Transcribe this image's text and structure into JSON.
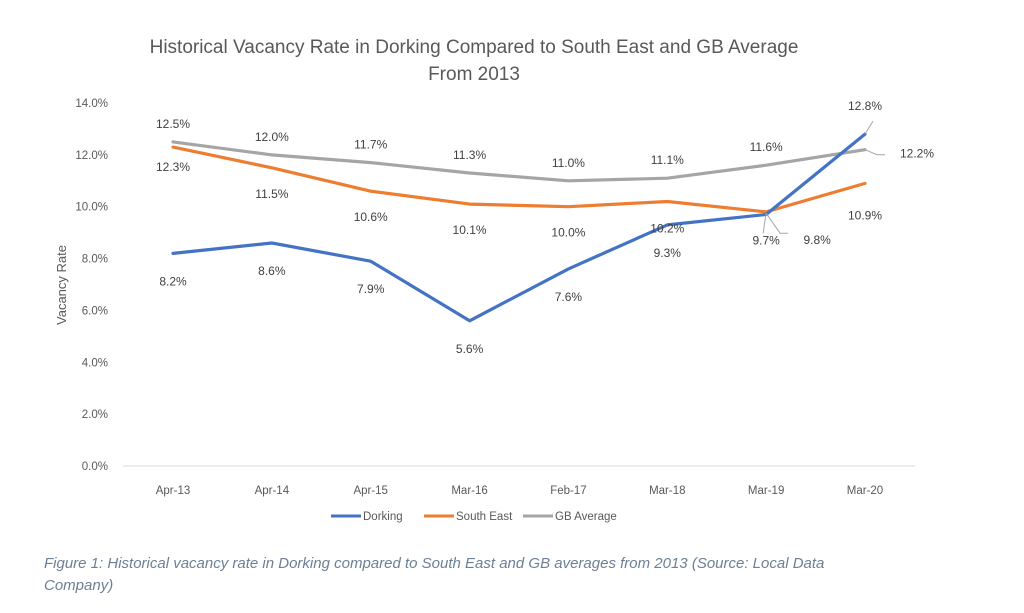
{
  "chart_data": {
    "type": "line",
    "title": [
      "Historical Vacancy Rate in Dorking Compared to South East and GB Average",
      "From 2013"
    ],
    "xlabel": "",
    "ylabel": "Vacancy Rate",
    "categories": [
      "Apr-13",
      "Apr-14",
      "Apr-15",
      "Mar-16",
      "Feb-17",
      "Mar-18",
      "Mar-19",
      "Mar-20"
    ],
    "ylim": [
      0,
      14
    ],
    "yticks": [
      0,
      2,
      4,
      6,
      8,
      10,
      12,
      14
    ],
    "ytick_labels": [
      "0.0%",
      "2.0%",
      "4.0%",
      "6.0%",
      "8.0%",
      "10.0%",
      "12.0%",
      "14.0%"
    ],
    "grid": false,
    "legend_position": "bottom",
    "series": [
      {
        "name": "Dorking",
        "color": "#4472c4",
        "values": [
          8.2,
          8.6,
          7.9,
          5.6,
          7.6,
          9.3,
          9.7,
          12.8
        ],
        "labels": [
          "8.2%",
          "8.6%",
          "7.9%",
          "5.6%",
          "7.6%",
          "9.3%",
          "9.7%",
          "12.8%"
        ]
      },
      {
        "name": "South East",
        "color": "#ed7d31",
        "values": [
          12.3,
          11.5,
          10.6,
          10.1,
          10.0,
          10.2,
          9.8,
          10.9
        ],
        "labels": [
          "12.3%",
          "11.5%",
          "10.6%",
          "10.1%",
          "10.0%",
          "10.2%",
          "9.8%",
          "10.9%"
        ]
      },
      {
        "name": "GB Average",
        "color": "#a5a5a5",
        "values": [
          12.5,
          12.0,
          11.7,
          11.3,
          11.0,
          11.1,
          11.6,
          12.2
        ],
        "labels": [
          "12.5%",
          "12.0%",
          "11.7%",
          "11.3%",
          "11.0%",
          "11.1%",
          "11.6%",
          "12.2%"
        ]
      }
    ]
  },
  "caption": {
    "line1": "Figure 1: Historical vacancy rate in Dorking compared to South East and GB averages from 2013 (Source: Local Data",
    "line2": "Company)"
  }
}
